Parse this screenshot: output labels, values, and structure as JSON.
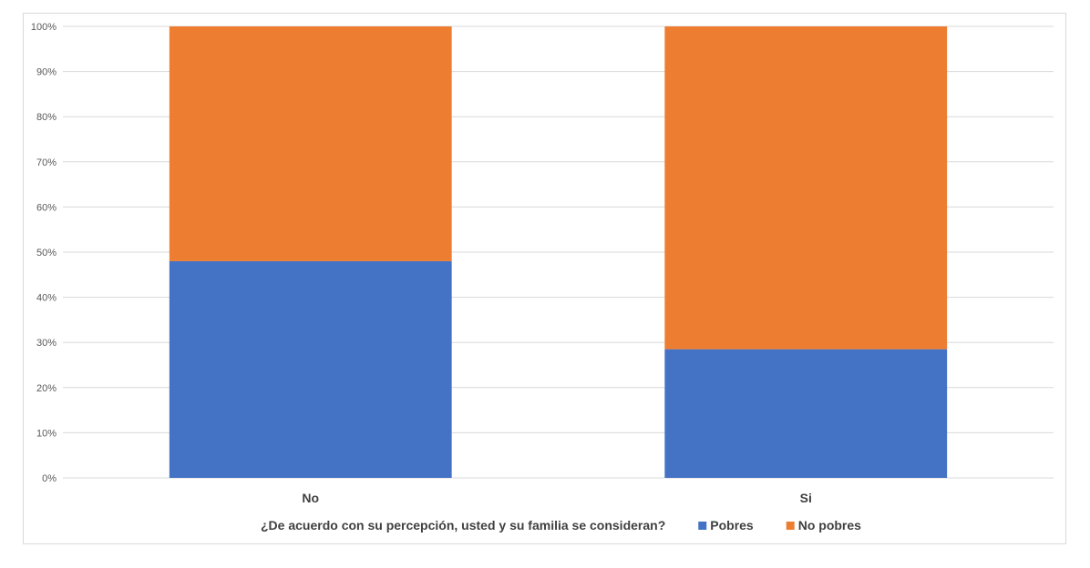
{
  "chart_data": {
    "type": "bar",
    "stacked": true,
    "percent_stacked": true,
    "title": "",
    "xlabel": "",
    "ylabel": "",
    "categories": [
      "No",
      "Si"
    ],
    "series": [
      {
        "name": "Pobres",
        "color": "#4472c4",
        "values": [
          48,
          28.5
        ]
      },
      {
        "name": "No pobres",
        "color": "#ed7d31",
        "values": [
          52,
          71.5
        ]
      }
    ],
    "ylim": [
      0,
      100
    ],
    "yticks": [
      "0%",
      "10%",
      "20%",
      "30%",
      "40%",
      "50%",
      "60%",
      "70%",
      "80%",
      "90%",
      "100%"
    ],
    "grid": true,
    "legend": {
      "placement": "bottom",
      "title": "¿De acuerdo con su percepción, usted y su familia se consideran?"
    }
  }
}
